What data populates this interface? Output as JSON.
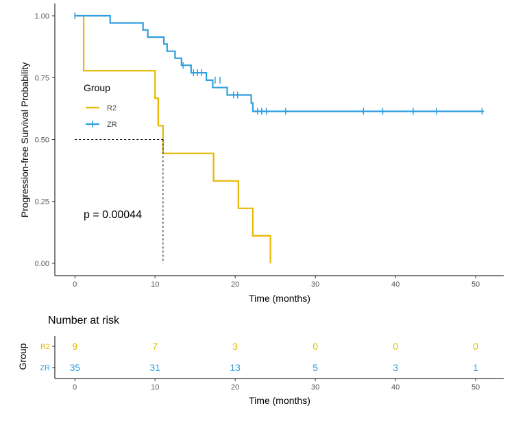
{
  "colors": {
    "R2": "#E7B800",
    "ZR": "#2E9FDF",
    "axis": "#000000",
    "ref": "#000000"
  },
  "chart_data": [
    {
      "type": "line",
      "subtype": "kaplan-meier",
      "title": "",
      "xlabel": "Time (months)",
      "ylabel": "Progression-free Survival Probability",
      "xlim": [
        -2.5,
        53.5
      ],
      "ylim": [
        -0.05,
        1.05
      ],
      "x_ticks": [
        0,
        10,
        20,
        30,
        40,
        50
      ],
      "x_tick_labels": [
        "0",
        "10",
        "20",
        "30",
        "40",
        "50"
      ],
      "y_ticks": [
        0,
        0.25,
        0.5,
        0.75,
        1
      ],
      "y_tick_labels": [
        "0.00",
        "0.25",
        "0.50",
        "0.75",
        "1.00"
      ],
      "grid": false,
      "legend": {
        "title": "Group",
        "placement": "left",
        "entries": [
          "R2",
          "ZR"
        ]
      },
      "annotation": "p = 0.00044",
      "median_reference": {
        "y": 0.5,
        "x": 11
      },
      "series": [
        {
          "name": "R2",
          "color": "#E7B800",
          "steps": [
            [
              0,
              1
            ],
            [
              1.1,
              0.778
            ],
            [
              10,
              0.667
            ],
            [
              10.4,
              0.556
            ],
            [
              11,
              0.444
            ],
            [
              17.3,
              0.333
            ],
            [
              20.4,
              0.222
            ],
            [
              22.2,
              0.111
            ],
            [
              24.4,
              0
            ]
          ],
          "end_x": 24.4,
          "censored": []
        },
        {
          "name": "ZR",
          "color": "#2E9FDF",
          "steps": [
            [
              0,
              1
            ],
            [
              4.4,
              0.971
            ],
            [
              8.5,
              0.943
            ],
            [
              9.1,
              0.914
            ],
            [
              11.1,
              0.886
            ],
            [
              11.5,
              0.857
            ],
            [
              12.5,
              0.829
            ],
            [
              13.3,
              0.8
            ],
            [
              14.5,
              0.77
            ],
            [
              16.4,
              0.74
            ],
            [
              17.2,
              0.71
            ],
            [
              19,
              0.68
            ],
            [
              22,
              0.647
            ],
            [
              22.2,
              0.614
            ]
          ],
          "end_x": 51,
          "censored": [
            [
              0,
              1
            ],
            [
              13.5,
              0.8
            ],
            [
              14.8,
              0.77
            ],
            [
              15.3,
              0.77
            ],
            [
              15.8,
              0.77
            ],
            [
              17.5,
              0.74
            ],
            [
              18.1,
              0.74
            ],
            [
              19.8,
              0.68
            ],
            [
              20.3,
              0.68
            ],
            [
              22.8,
              0.614
            ],
            [
              23.3,
              0.614
            ],
            [
              23.9,
              0.614
            ],
            [
              26.3,
              0.614
            ],
            [
              36,
              0.614
            ],
            [
              38.4,
              0.614
            ],
            [
              42.2,
              0.614
            ],
            [
              45.1,
              0.614
            ],
            [
              50.8,
              0.614
            ]
          ]
        }
      ]
    },
    {
      "type": "table",
      "title": "Number at risk",
      "xlabel": "Time (months)",
      "ylabel": "Group",
      "x_ticks": [
        0,
        10,
        20,
        30,
        40,
        50
      ],
      "x_tick_labels": [
        "0",
        "10",
        "20",
        "30",
        "40",
        "50"
      ],
      "rows": [
        {
          "name": "R2",
          "color": "#E7B800",
          "values": [
            9,
            7,
            3,
            0,
            0,
            0
          ]
        },
        {
          "name": "ZR",
          "color": "#2E9FDF",
          "values": [
            35,
            31,
            13,
            5,
            3,
            1
          ]
        }
      ]
    }
  ]
}
